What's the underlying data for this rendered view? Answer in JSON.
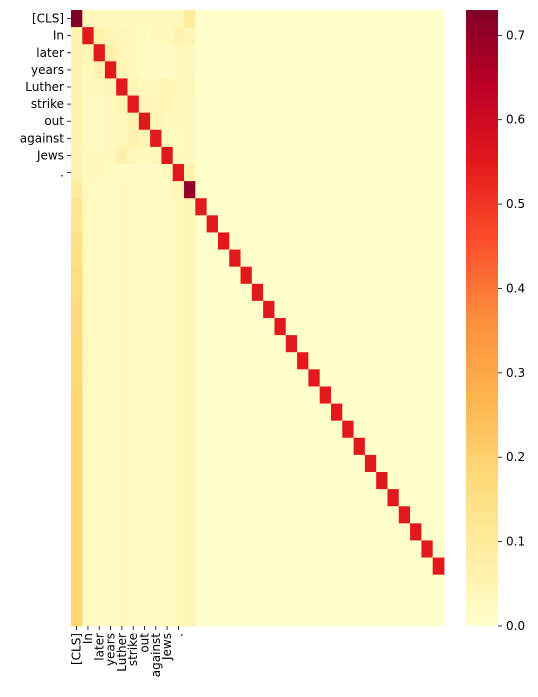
{
  "chart_data": {
    "type": "heatmap",
    "title": "",
    "xlabel": "",
    "ylabel": "",
    "x_tick_labels": [
      "[CLS]",
      "In",
      "later",
      "years",
      "Luther",
      "strike",
      "out",
      "against",
      "Jews",
      "."
    ],
    "y_tick_labels": [
      "[CLS]",
      "In",
      "later",
      "years",
      "Luther",
      "strike",
      "out",
      "against",
      "Jews",
      "."
    ],
    "num_rows": 36,
    "num_cols": 33,
    "colormap": "YlOrRd",
    "color_stops": [
      "#ffffcc",
      "#ffeda0",
      "#fed976",
      "#feb24c",
      "#fd8d3c",
      "#fc4e2a",
      "#e31a1c",
      "#bd0026",
      "#800026"
    ],
    "colorbar": {
      "min": 0.0,
      "max": 0.73,
      "ticks": [
        0.0,
        0.1,
        0.2,
        0.3,
        0.4,
        0.5,
        0.6,
        0.7
      ],
      "tick_labels": [
        "0.0",
        "0.1",
        "0.2",
        "0.3",
        "0.4",
        "0.5",
        "0.6",
        "0.7"
      ]
    },
    "values": [
      [
        0.73,
        0.03,
        0.03,
        0.03,
        0.03,
        0.03,
        0.03,
        0.03,
        0.03,
        0.04,
        0.1,
        0,
        0,
        0,
        0,
        0,
        0,
        0,
        0,
        0,
        0,
        0,
        0,
        0,
        0,
        0,
        0,
        0,
        0,
        0,
        0,
        0,
        0
      ],
      [
        0.06,
        0.55,
        0.07,
        0.05,
        0.04,
        0.03,
        0.02,
        0.03,
        0.03,
        0.06,
        0.05,
        0,
        0,
        0,
        0,
        0,
        0,
        0,
        0,
        0,
        0,
        0,
        0,
        0,
        0,
        0,
        0,
        0,
        0,
        0,
        0,
        0,
        0
      ],
      [
        0.06,
        0.05,
        0.55,
        0.07,
        0.04,
        0.03,
        0.02,
        0.02,
        0.02,
        0.03,
        0.03,
        0,
        0,
        0,
        0,
        0,
        0,
        0,
        0,
        0,
        0,
        0,
        0,
        0,
        0,
        0,
        0,
        0,
        0,
        0,
        0,
        0,
        0
      ],
      [
        0.06,
        0.03,
        0.06,
        0.55,
        0.05,
        0.03,
        0.02,
        0.02,
        0.02,
        0.03,
        0.03,
        0,
        0,
        0,
        0,
        0,
        0,
        0,
        0,
        0,
        0,
        0,
        0,
        0,
        0,
        0,
        0,
        0,
        0,
        0,
        0,
        0,
        0
      ],
      [
        0.06,
        0.03,
        0.03,
        0.05,
        0.55,
        0.05,
        0.03,
        0.03,
        0.05,
        0.04,
        0.04,
        0,
        0,
        0,
        0,
        0,
        0,
        0,
        0,
        0,
        0,
        0,
        0,
        0,
        0,
        0,
        0,
        0,
        0,
        0,
        0,
        0,
        0
      ],
      [
        0.06,
        0.02,
        0.02,
        0.03,
        0.05,
        0.55,
        0.05,
        0.04,
        0.05,
        0.03,
        0.03,
        0,
        0,
        0,
        0,
        0,
        0,
        0,
        0,
        0,
        0,
        0,
        0,
        0,
        0,
        0,
        0,
        0,
        0,
        0,
        0,
        0,
        0
      ],
      [
        0.06,
        0.02,
        0.02,
        0.03,
        0.04,
        0.06,
        0.55,
        0.05,
        0.03,
        0.03,
        0.03,
        0,
        0,
        0,
        0,
        0,
        0,
        0,
        0,
        0,
        0,
        0,
        0,
        0,
        0,
        0,
        0,
        0,
        0,
        0,
        0,
        0,
        0
      ],
      [
        0.06,
        0.02,
        0.02,
        0.03,
        0.04,
        0.06,
        0.05,
        0.55,
        0.03,
        0.02,
        0.03,
        0,
        0,
        0,
        0,
        0,
        0,
        0,
        0,
        0,
        0,
        0,
        0,
        0,
        0,
        0,
        0,
        0,
        0,
        0,
        0,
        0,
        0
      ],
      [
        0.06,
        0.03,
        0.03,
        0.03,
        0.07,
        0.04,
        0.03,
        0.04,
        0.55,
        0.03,
        0.03,
        0,
        0,
        0,
        0,
        0,
        0,
        0,
        0,
        0,
        0,
        0,
        0,
        0,
        0,
        0,
        0,
        0,
        0,
        0,
        0,
        0,
        0
      ],
      [
        0.06,
        0.03,
        0.03,
        0.02,
        0.02,
        0.02,
        0.02,
        0.02,
        0.03,
        0.55,
        0.06,
        0,
        0,
        0,
        0,
        0,
        0,
        0,
        0,
        0,
        0,
        0,
        0,
        0,
        0,
        0,
        0,
        0,
        0,
        0,
        0,
        0,
        0
      ],
      [
        0.1,
        0.03,
        0.02,
        0.02,
        0.03,
        0.02,
        0.02,
        0.02,
        0.02,
        0.05,
        0.7,
        0,
        0,
        0,
        0,
        0,
        0,
        0,
        0,
        0,
        0,
        0,
        0,
        0,
        0,
        0,
        0,
        0,
        0,
        0,
        0,
        0,
        0
      ],
      [
        0.12,
        0.03,
        0.02,
        0.02,
        0.03,
        0.02,
        0.02,
        0.02,
        0.02,
        0.03,
        0.05,
        0.55,
        0,
        0,
        0,
        0,
        0,
        0,
        0,
        0,
        0,
        0,
        0,
        0,
        0,
        0,
        0,
        0,
        0,
        0,
        0,
        0,
        0
      ],
      [
        0.13,
        0.03,
        0.02,
        0.02,
        0.03,
        0.02,
        0.02,
        0.02,
        0.02,
        0.03,
        0.05,
        0,
        0.55,
        0,
        0,
        0,
        0,
        0,
        0,
        0,
        0,
        0,
        0,
        0,
        0,
        0,
        0,
        0,
        0,
        0,
        0,
        0,
        0
      ],
      [
        0.14,
        0.03,
        0.02,
        0.02,
        0.03,
        0.02,
        0.02,
        0.02,
        0.02,
        0.03,
        0.05,
        0,
        0,
        0.55,
        0,
        0,
        0,
        0,
        0,
        0,
        0,
        0,
        0,
        0,
        0,
        0,
        0,
        0,
        0,
        0,
        0,
        0,
        0
      ],
      [
        0.15,
        0.03,
        0.02,
        0.02,
        0.03,
        0.02,
        0.02,
        0.02,
        0.02,
        0.03,
        0.05,
        0,
        0,
        0,
        0.55,
        0,
        0,
        0,
        0,
        0,
        0,
        0,
        0,
        0,
        0,
        0,
        0,
        0,
        0,
        0,
        0,
        0,
        0
      ],
      [
        0.16,
        0.03,
        0.02,
        0.02,
        0.03,
        0.02,
        0.02,
        0.02,
        0.02,
        0.03,
        0.05,
        0,
        0,
        0,
        0,
        0.55,
        0,
        0,
        0,
        0,
        0,
        0,
        0,
        0,
        0,
        0,
        0,
        0,
        0,
        0,
        0,
        0,
        0
      ],
      [
        0.16,
        0.03,
        0.02,
        0.02,
        0.03,
        0.02,
        0.02,
        0.02,
        0.02,
        0.03,
        0.05,
        0,
        0,
        0,
        0,
        0,
        0.55,
        0,
        0,
        0,
        0,
        0,
        0,
        0,
        0,
        0,
        0,
        0,
        0,
        0,
        0,
        0,
        0
      ],
      [
        0.17,
        0.03,
        0.02,
        0.02,
        0.03,
        0.02,
        0.02,
        0.02,
        0.02,
        0.03,
        0.05,
        0,
        0,
        0,
        0,
        0,
        0,
        0.55,
        0,
        0,
        0,
        0,
        0,
        0,
        0,
        0,
        0,
        0,
        0,
        0,
        0,
        0,
        0
      ],
      [
        0.17,
        0.03,
        0.02,
        0.02,
        0.03,
        0.02,
        0.02,
        0.02,
        0.02,
        0.03,
        0.05,
        0,
        0,
        0,
        0,
        0,
        0,
        0,
        0.55,
        0,
        0,
        0,
        0,
        0,
        0,
        0,
        0,
        0,
        0,
        0,
        0,
        0,
        0
      ],
      [
        0.18,
        0.03,
        0.02,
        0.02,
        0.03,
        0.02,
        0.02,
        0.02,
        0.02,
        0.03,
        0.05,
        0,
        0,
        0,
        0,
        0,
        0,
        0,
        0,
        0.55,
        0,
        0,
        0,
        0,
        0,
        0,
        0,
        0,
        0,
        0,
        0,
        0,
        0
      ],
      [
        0.18,
        0.03,
        0.02,
        0.02,
        0.03,
        0.02,
        0.02,
        0.02,
        0.02,
        0.03,
        0.05,
        0,
        0,
        0,
        0,
        0,
        0,
        0,
        0,
        0,
        0.55,
        0,
        0,
        0,
        0,
        0,
        0,
        0,
        0,
        0,
        0,
        0,
        0
      ],
      [
        0.18,
        0.03,
        0.02,
        0.02,
        0.03,
        0.02,
        0.02,
        0.02,
        0.02,
        0.03,
        0.05,
        0,
        0,
        0,
        0,
        0,
        0,
        0,
        0,
        0,
        0,
        0.55,
        0,
        0,
        0,
        0,
        0,
        0,
        0,
        0,
        0,
        0,
        0
      ],
      [
        0.19,
        0.03,
        0.02,
        0.02,
        0.03,
        0.02,
        0.02,
        0.02,
        0.02,
        0.03,
        0.05,
        0,
        0,
        0,
        0,
        0,
        0,
        0,
        0,
        0,
        0,
        0,
        0.55,
        0,
        0,
        0,
        0,
        0,
        0,
        0,
        0,
        0,
        0
      ],
      [
        0.19,
        0.03,
        0.02,
        0.02,
        0.03,
        0.02,
        0.02,
        0.02,
        0.02,
        0.03,
        0.05,
        0,
        0,
        0,
        0,
        0,
        0,
        0,
        0,
        0,
        0,
        0,
        0,
        0.55,
        0,
        0,
        0,
        0,
        0,
        0,
        0,
        0,
        0
      ],
      [
        0.19,
        0.03,
        0.02,
        0.02,
        0.03,
        0.02,
        0.02,
        0.02,
        0.02,
        0.03,
        0.05,
        0,
        0,
        0,
        0,
        0,
        0,
        0,
        0,
        0,
        0,
        0,
        0,
        0,
        0.55,
        0,
        0,
        0,
        0,
        0,
        0,
        0,
        0
      ],
      [
        0.19,
        0.03,
        0.02,
        0.02,
        0.03,
        0.02,
        0.02,
        0.02,
        0.02,
        0.03,
        0.05,
        0,
        0,
        0,
        0,
        0,
        0,
        0,
        0,
        0,
        0,
        0,
        0,
        0,
        0,
        0.55,
        0,
        0,
        0,
        0,
        0,
        0,
        0
      ],
      [
        0.19,
        0.03,
        0.02,
        0.02,
        0.03,
        0.02,
        0.02,
        0.02,
        0.02,
        0.03,
        0.05,
        0,
        0,
        0,
        0,
        0,
        0,
        0,
        0,
        0,
        0,
        0,
        0,
        0,
        0,
        0,
        0.55,
        0,
        0,
        0,
        0,
        0,
        0
      ],
      [
        0.19,
        0.03,
        0.02,
        0.02,
        0.03,
        0.02,
        0.02,
        0.02,
        0.02,
        0.03,
        0.05,
        0,
        0,
        0,
        0,
        0,
        0,
        0,
        0,
        0,
        0,
        0,
        0,
        0,
        0,
        0,
        0,
        0.55,
        0,
        0,
        0,
        0,
        0
      ],
      [
        0.19,
        0.03,
        0.02,
        0.02,
        0.03,
        0.02,
        0.02,
        0.02,
        0.02,
        0.03,
        0.05,
        0,
        0,
        0,
        0,
        0,
        0,
        0,
        0,
        0,
        0,
        0,
        0,
        0,
        0,
        0,
        0,
        0,
        0.55,
        0,
        0,
        0,
        0
      ],
      [
        0.19,
        0.03,
        0.02,
        0.02,
        0.03,
        0.02,
        0.02,
        0.02,
        0.02,
        0.03,
        0.05,
        0,
        0,
        0,
        0,
        0,
        0,
        0,
        0,
        0,
        0,
        0,
        0,
        0,
        0,
        0,
        0,
        0,
        0,
        0.55,
        0,
        0,
        0
      ],
      [
        0.19,
        0.03,
        0.02,
        0.02,
        0.03,
        0.02,
        0.02,
        0.02,
        0.02,
        0.03,
        0.05,
        0,
        0,
        0,
        0,
        0,
        0,
        0,
        0,
        0,
        0,
        0,
        0,
        0,
        0,
        0,
        0,
        0,
        0,
        0,
        0.55,
        0,
        0
      ],
      [
        0.19,
        0.03,
        0.02,
        0.02,
        0.03,
        0.02,
        0.02,
        0.02,
        0.02,
        0.03,
        0.05,
        0,
        0,
        0,
        0,
        0,
        0,
        0,
        0,
        0,
        0,
        0,
        0,
        0,
        0,
        0,
        0,
        0,
        0,
        0,
        0,
        0.55,
        0
      ],
      [
        0.19,
        0.03,
        0.02,
        0.02,
        0.03,
        0.02,
        0.02,
        0.02,
        0.02,
        0.03,
        0.05,
        0,
        0,
        0,
        0,
        0,
        0,
        0,
        0,
        0,
        0,
        0,
        0,
        0,
        0,
        0,
        0,
        0,
        0,
        0,
        0,
        0,
        0.55
      ],
      [
        0.19,
        0.03,
        0.02,
        0.02,
        0.03,
        0.02,
        0.02,
        0.02,
        0.02,
        0.03,
        0.05,
        0,
        0,
        0,
        0,
        0,
        0,
        0,
        0,
        0,
        0,
        0,
        0,
        0,
        0,
        0,
        0,
        0,
        0,
        0,
        0,
        0,
        0
      ],
      [
        0.19,
        0.03,
        0.02,
        0.02,
        0.03,
        0.02,
        0.02,
        0.02,
        0.02,
        0.03,
        0.05,
        0,
        0,
        0,
        0,
        0,
        0,
        0,
        0,
        0,
        0,
        0,
        0,
        0,
        0,
        0,
        0,
        0,
        0,
        0,
        0,
        0,
        0
      ],
      [
        0.19,
        0.03,
        0.02,
        0.02,
        0.03,
        0.02,
        0.02,
        0.02,
        0.02,
        0.03,
        0.05,
        0,
        0,
        0,
        0,
        0,
        0,
        0,
        0,
        0,
        0,
        0,
        0,
        0,
        0,
        0,
        0,
        0,
        0,
        0,
        0,
        0,
        0
      ]
    ]
  }
}
